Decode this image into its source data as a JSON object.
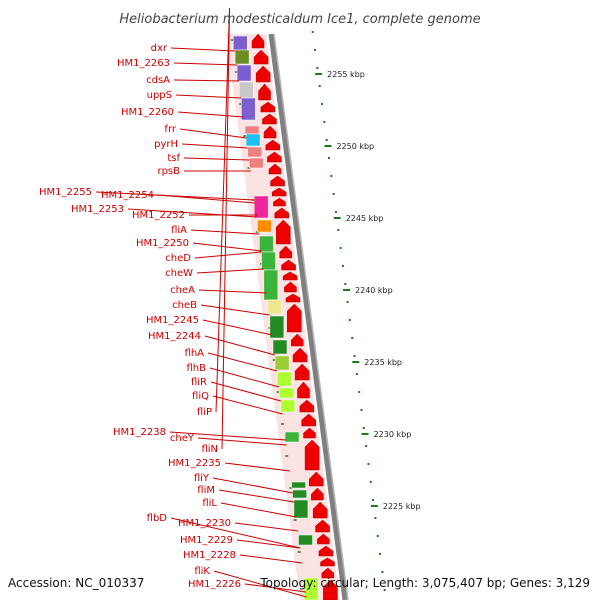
{
  "title": "Heliobacterium modesticaldum Ice1, complete genome",
  "accession": "Accession: NC_010337",
  "summary": "Topology: circular; Length: 3,075,407 bp; Genes: 3,129",
  "colors": {
    "label": "#cc0000",
    "arrow": "#ee0000",
    "tick": "#1f7a1f",
    "backbone": "#808080"
  },
  "scale_ticks": [
    "2255 kbp",
    "2250 kbp",
    "2245 kbp",
    "2240 kbp",
    "2235 kbp",
    "2230 kbp",
    "2225 kbp"
  ],
  "genes": [
    {
      "label": "dxr",
      "color": "#7b5fd0"
    },
    {
      "label": "HM1_2263",
      "color": "#6b8e23"
    },
    {
      "label": "cdsA",
      "color": "#7b5fd0"
    },
    {
      "label": "uppS",
      "color": "#c8c8c8"
    },
    {
      "label": "HM1_2260",
      "color": "#7b5fd0"
    },
    {
      "label": "frr",
      "color": "#f08080"
    },
    {
      "label": "pyrH",
      "color": "#1ec0f0"
    },
    {
      "label": "tsf",
      "color": "#f08080"
    },
    {
      "label": "rpsB",
      "color": "#f08080"
    },
    {
      "label": "HM1_2255",
      "color": ""
    },
    {
      "label": "HM1_2254",
      "color": ""
    },
    {
      "label": "HM1_2253",
      "color": ""
    },
    {
      "label": "HM1_2252",
      "color": "#f0249c"
    },
    {
      "label": "fliA",
      "color": "#ff8c00"
    },
    {
      "label": "HM1_2250",
      "color": ""
    },
    {
      "label": "cheD",
      "color": "#3cb43c"
    },
    {
      "label": "cheW",
      "color": "#3cb43c"
    },
    {
      "label": "cheA",
      "color": "#3cb43c"
    },
    {
      "label": "cheB",
      "color": "#f0e68c"
    },
    {
      "label": "HM1_2245",
      "color": "#228b22"
    },
    {
      "label": "HM1_2244",
      "color": "#228b22"
    },
    {
      "label": "flhA",
      "color": "#9acd32"
    },
    {
      "label": "flhB",
      "color": "#adff2f"
    },
    {
      "label": "fliR",
      "color": "#adff2f"
    },
    {
      "label": "fliQ",
      "color": "#adff2f"
    },
    {
      "label": "fliP",
      "color": "#adff2f"
    },
    {
      "label": "HM1_2238",
      "color": ""
    },
    {
      "label": "cheY",
      "color": "#3cb43c"
    },
    {
      "label": "fliN",
      "color": "#3cb43c"
    },
    {
      "label": "HM1_2235",
      "color": ""
    },
    {
      "label": "fliY",
      "color": "#228b22"
    },
    {
      "label": "fliM",
      "color": "#228b22"
    },
    {
      "label": "fliL",
      "color": "#228b22"
    },
    {
      "label": "flbD",
      "color": "#228b22"
    },
    {
      "label": "HM1_2230",
      "color": ""
    },
    {
      "label": "HM1_2229",
      "color": ""
    },
    {
      "label": "HM1_2228",
      "color": ""
    },
    {
      "label": "fliK",
      "color": "#adff2f"
    },
    {
      "label": "HM1_2226",
      "color": ""
    }
  ]
}
